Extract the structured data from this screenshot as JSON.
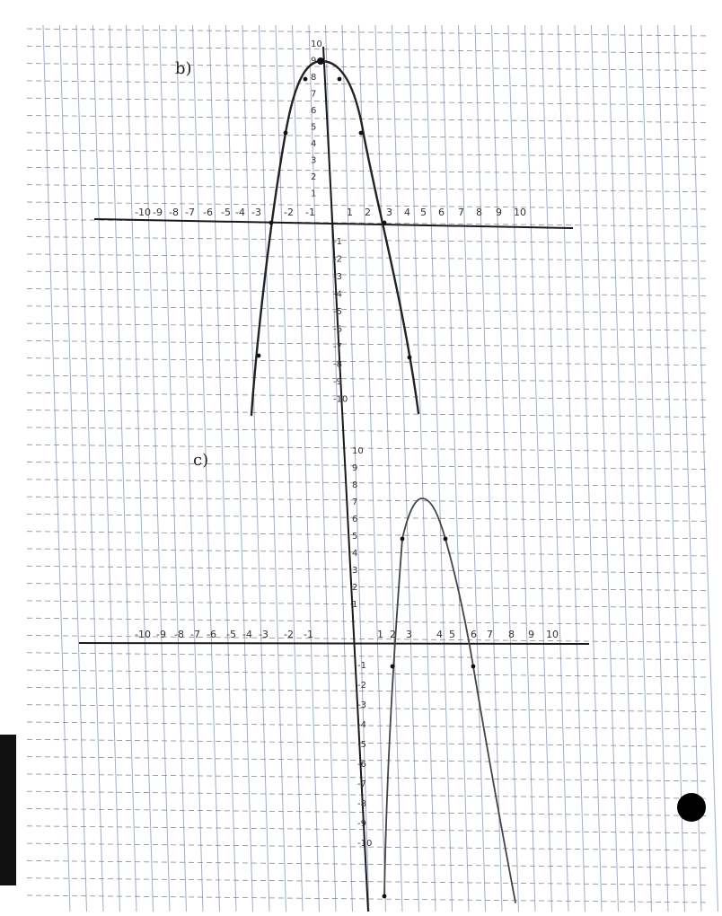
{
  "parts": [
    {
      "label": "b)"
    },
    {
      "label": "c)"
    }
  ],
  "graph_b": {
    "x_ticks": [
      "-10",
      "-9",
      "-8",
      "-7",
      "-6",
      "-5",
      "-4",
      "-3",
      "-2",
      "-1",
      "1",
      "2",
      "3",
      "4",
      "5",
      "6",
      "7",
      "8",
      "9",
      "10"
    ],
    "y_ticks_pos": [
      "10",
      "9",
      "8",
      "7",
      "6",
      "5",
      "4",
      "3",
      "2",
      "1"
    ],
    "y_ticks_neg": [
      "-1",
      "-2",
      "-3",
      "-4",
      "-5",
      "-6",
      "-7",
      "-8",
      "-9",
      "-10"
    ]
  },
  "graph_c": {
    "x_ticks": [
      "-10",
      "-9",
      "-8",
      "-7",
      "-6",
      "-5",
      "-4",
      "-3",
      "-2",
      "-1",
      "1",
      "2",
      "3",
      "4",
      "5",
      "6",
      "7",
      "8",
      "9",
      "10"
    ],
    "y_ticks_pos": [
      "10",
      "9",
      "8",
      "7",
      "6",
      "5",
      "4",
      "3",
      "2",
      "1"
    ],
    "y_ticks_neg": [
      "-1",
      "-2",
      "-3",
      "-4",
      "-5",
      "-6",
      "-7",
      "-8",
      "-9",
      "-10"
    ]
  },
  "colors": {
    "grid_vertical": "#9ab0c8",
    "grid_horizontal": "#8a8a8a",
    "ink": "#222222"
  }
}
